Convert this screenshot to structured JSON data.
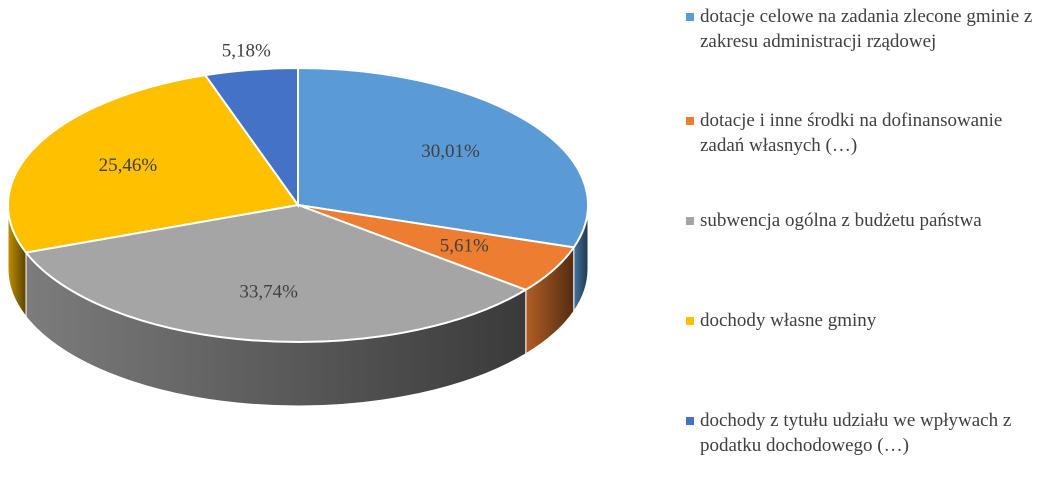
{
  "chart_data": {
    "type": "pie3d",
    "categories": [
      "dotacje celowe na zadania zlecone gminie z zakresu administracji rządowej",
      "dotacje i inne środki na dofinansowanie zadań własnych (…)",
      "subwencja ogólna z budżetu państwa",
      "dochody własne gminy",
      "dochody z tytułu udziału we wpływach z podatku dochodowego (…)"
    ],
    "values": [
      30.01,
      5.61,
      33.74,
      25.46,
      5.18
    ],
    "value_labels": [
      "30,01%",
      "5,61%",
      "33,74%",
      "25,46%",
      "5,18%"
    ],
    "colors": [
      "#5b9bd5",
      "#ed7d31",
      "#a5a5a5",
      "#ffc000",
      "#4472c4"
    ],
    "legend": "right"
  }
}
